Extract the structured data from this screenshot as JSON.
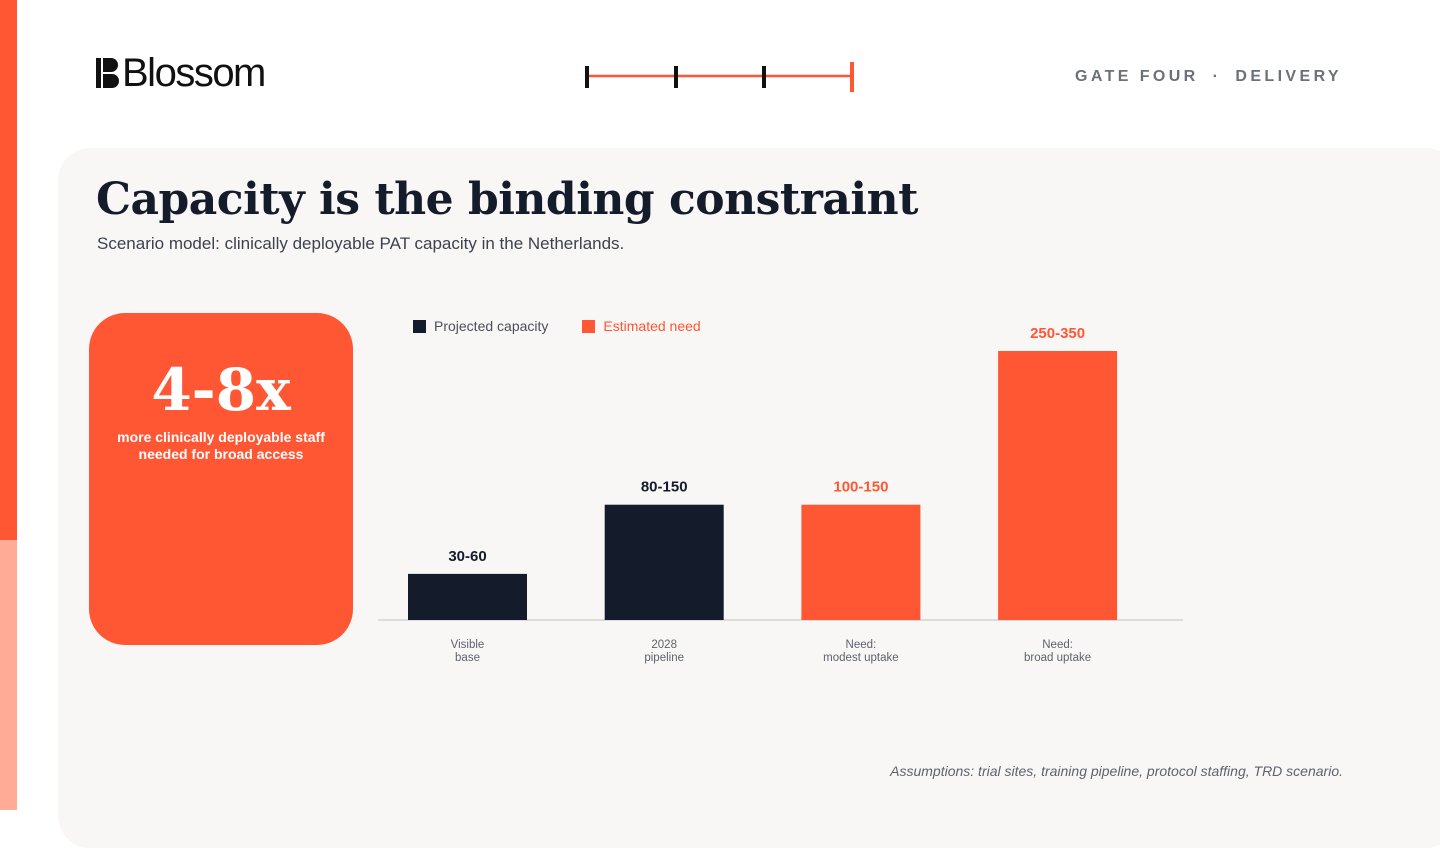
{
  "brand": {
    "name": "Blossom",
    "logo_icon": "blossom-logo-icon"
  },
  "header": {
    "section": "GATE FOUR",
    "separator": "·",
    "stage": "DELIVERY"
  },
  "progress": {
    "steps": 4,
    "current_step": 4
  },
  "slide": {
    "title": "Capacity is the binding constraint",
    "subtitle": "Scenario model: clinically deployable PAT capacity in the Netherlands."
  },
  "stat": {
    "value": "4-8x",
    "caption": "more clinically deployable staff needed for broad access"
  },
  "footnote": "Assumptions: trial sites, training pipeline, protocol staffing, TRD scenario.",
  "colors": {
    "accent": "#ff5733",
    "accent_light": "#ffab95",
    "navy": "#141b2b",
    "panel": "#f9f7f5"
  },
  "chart_data": {
    "type": "bar",
    "legend": [
      {
        "name": "Projected capacity",
        "color": "#141b2b"
      },
      {
        "name": "Estimated need",
        "color": "#ff5733"
      }
    ],
    "legend_placement": "top-left",
    "grid": false,
    "ylim": [
      0,
      350
    ],
    "categories": [
      {
        "lines": [
          "Visible",
          "base"
        ]
      },
      {
        "lines": [
          "2028",
          "pipeline"
        ]
      },
      {
        "lines": [
          "Need:",
          "modest uptake"
        ]
      },
      {
        "lines": [
          "Need:",
          "broad uptake"
        ]
      }
    ],
    "bars": [
      {
        "series": "Projected capacity",
        "value": 60,
        "label": "30-60",
        "color": "#141b2b"
      },
      {
        "series": "Projected capacity",
        "value": 150,
        "label": "80-150",
        "color": "#141b2b"
      },
      {
        "series": "Estimated need",
        "value": 150,
        "label": "100-150",
        "color": "#ff5733"
      },
      {
        "series": "Estimated need",
        "value": 350,
        "label": "250-350",
        "color": "#ff5733"
      }
    ]
  }
}
